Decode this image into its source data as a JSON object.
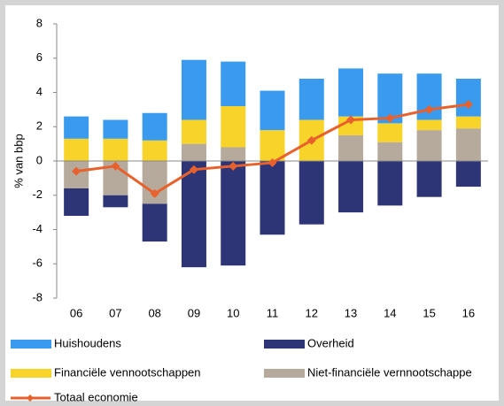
{
  "chart_data": {
    "type": "bar",
    "y_label": "% van bbp",
    "categories": [
      "06",
      "07",
      "08",
      "09",
      "10",
      "11",
      "12",
      "13",
      "14",
      "15",
      "16"
    ],
    "ylim": [
      -8,
      8
    ],
    "yticks": [
      -8,
      -6,
      -4,
      -2,
      0,
      2,
      4,
      6,
      8
    ],
    "series": [
      {
        "name": "Huishoudens",
        "color": "#3a9bee",
        "values": [
          1.3,
          1.1,
          1.6,
          3.5,
          2.6,
          2.3,
          2.4,
          2.8,
          2.9,
          2.7,
          2.2
        ]
      },
      {
        "name": "Overheid",
        "color": "#2e3577",
        "values": [
          -1.6,
          -0.7,
          -2.2,
          -6.2,
          -6.1,
          -4.3,
          -3.7,
          -3.0,
          -2.6,
          -2.1,
          -1.5
        ]
      },
      {
        "name": "Financiële vennootschappen",
        "color": "#f8d32a",
        "values": [
          1.3,
          1.3,
          1.2,
          1.4,
          2.4,
          1.8,
          2.4,
          1.1,
          1.1,
          0.6,
          0.7
        ]
      },
      {
        "name": "Niet-financiële vernnootschappe",
        "color": "#b6aa9c",
        "values": [
          -1.6,
          -2.0,
          -2.5,
          1.0,
          0.8,
          0,
          0,
          1.5,
          1.1,
          1.8,
          1.9
        ]
      },
      {
        "name": "Totaal economie",
        "color": "#e8612c",
        "type": "line",
        "values": [
          -0.6,
          -0.3,
          -1.9,
          -0.5,
          -0.3,
          -0.1,
          1.2,
          2.4,
          2.5,
          3.0,
          3.3
        ]
      }
    ]
  }
}
